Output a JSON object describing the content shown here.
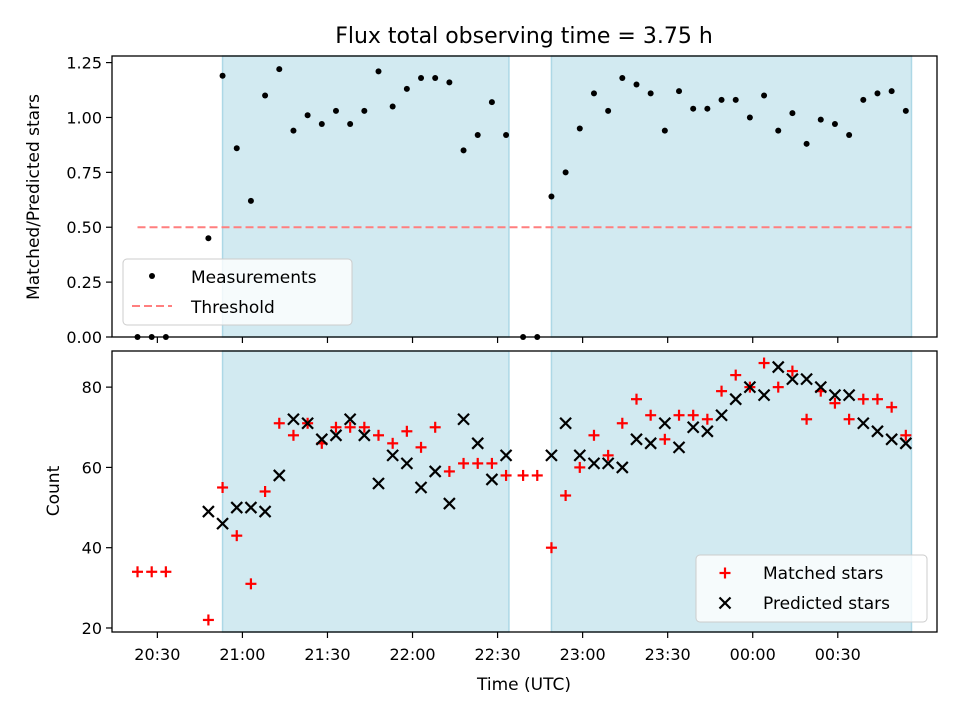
{
  "title": "Flux total observing time = 3.75 h",
  "colors": {
    "band": "#add8e6",
    "measurement": "#000000",
    "threshold": "#ff7f7f",
    "matched": "#ff0000",
    "predicted": "#000000"
  },
  "chart_data": [
    {
      "type": "scatter",
      "ylabel": "Matched/Predicted stars",
      "xlim": [
        20.2333,
        25.0833
      ],
      "ylim": [
        0,
        1.28
      ],
      "yticks": [
        0.0,
        0.25,
        0.5,
        0.75,
        1.0,
        1.25
      ],
      "ytick_labels": [
        "0.00",
        "0.25",
        "0.50",
        "0.75",
        "1.00",
        "1.25"
      ],
      "grid": false,
      "legend_position": "bottom-left",
      "observing_windows": [
        [
          20.8833,
          22.5667
        ],
        [
          22.8167,
          24.9333
        ]
      ],
      "threshold": {
        "name": "Threshold",
        "value": 0.5,
        "x_range": [
          20.3833,
          24.9333
        ]
      },
      "series": [
        {
          "name": "Measurements",
          "points": [
            [
              20.3833,
              0.0
            ],
            [
              20.4667,
              0.0
            ],
            [
              20.55,
              0.0
            ],
            [
              20.8,
              0.45
            ],
            [
              20.8833,
              1.19
            ],
            [
              20.9667,
              0.86
            ],
            [
              21.05,
              0.62
            ],
            [
              21.1333,
              1.1
            ],
            [
              21.2167,
              1.22
            ],
            [
              21.3,
              0.94
            ],
            [
              21.3833,
              1.01
            ],
            [
              21.4667,
              0.97
            ],
            [
              21.55,
              1.03
            ],
            [
              21.6333,
              0.97
            ],
            [
              21.7167,
              1.03
            ],
            [
              21.8,
              1.21
            ],
            [
              21.8833,
              1.05
            ],
            [
              21.9667,
              1.13
            ],
            [
              22.05,
              1.18
            ],
            [
              22.1333,
              1.18
            ],
            [
              22.2167,
              1.16
            ],
            [
              22.3,
              0.85
            ],
            [
              22.3833,
              0.92
            ],
            [
              22.4667,
              1.07
            ],
            [
              22.55,
              0.92
            ],
            [
              22.65,
              0.0
            ],
            [
              22.7333,
              0.0
            ],
            [
              22.8167,
              0.64
            ],
            [
              22.9,
              0.75
            ],
            [
              22.9833,
              0.95
            ],
            [
              23.0667,
              1.11
            ],
            [
              23.15,
              1.03
            ],
            [
              23.2333,
              1.18
            ],
            [
              23.3167,
              1.15
            ],
            [
              23.4,
              1.11
            ],
            [
              23.4833,
              0.94
            ],
            [
              23.5667,
              1.12
            ],
            [
              23.65,
              1.04
            ],
            [
              23.7333,
              1.04
            ],
            [
              23.8167,
              1.08
            ],
            [
              23.9,
              1.08
            ],
            [
              23.9833,
              1.0
            ],
            [
              24.0667,
              1.1
            ],
            [
              24.15,
              0.94
            ],
            [
              24.2333,
              1.02
            ],
            [
              24.3167,
              0.88
            ],
            [
              24.4,
              0.99
            ],
            [
              24.4833,
              0.97
            ],
            [
              24.5667,
              0.92
            ],
            [
              24.65,
              1.08
            ],
            [
              24.7333,
              1.11
            ],
            [
              24.8167,
              1.12
            ],
            [
              24.9,
              1.03
            ]
          ]
        }
      ]
    },
    {
      "type": "scatter",
      "xlabel": "Time (UTC)",
      "ylabel": "Count",
      "xlim": [
        20.2333,
        25.0833
      ],
      "ylim": [
        19,
        89
      ],
      "xticks": [
        20.5,
        21.0,
        21.5,
        22.0,
        22.5,
        23.0,
        23.5,
        24.0,
        24.5
      ],
      "xtick_labels": [
        "20:30",
        "21:00",
        "21:30",
        "22:00",
        "22:30",
        "23:00",
        "23:30",
        "00:00",
        "00:30"
      ],
      "yticks": [
        20,
        40,
        60,
        80
      ],
      "ytick_labels": [
        "20",
        "40",
        "60",
        "80"
      ],
      "grid": false,
      "legend_position": "bottom-right",
      "observing_windows": [
        [
          20.8833,
          22.5667
        ],
        [
          22.8167,
          24.9333
        ]
      ],
      "series": [
        {
          "name": "Matched stars",
          "marker": "+",
          "points": [
            [
              20.3833,
              34
            ],
            [
              20.4667,
              34
            ],
            [
              20.55,
              34
            ],
            [
              20.8,
              22
            ],
            [
              20.8833,
              55
            ],
            [
              20.9667,
              43
            ],
            [
              21.05,
              31
            ],
            [
              21.1333,
              54
            ],
            [
              21.2167,
              71
            ],
            [
              21.3,
              68
            ],
            [
              21.3833,
              71
            ],
            [
              21.4667,
              66
            ],
            [
              21.55,
              70
            ],
            [
              21.6333,
              70
            ],
            [
              21.7167,
              70
            ],
            [
              21.8,
              68
            ],
            [
              21.8833,
              66
            ],
            [
              21.9667,
              69
            ],
            [
              22.05,
              65
            ],
            [
              22.1333,
              70
            ],
            [
              22.2167,
              59
            ],
            [
              22.3,
              61
            ],
            [
              22.3833,
              61
            ],
            [
              22.4667,
              61
            ],
            [
              22.55,
              58
            ],
            [
              22.65,
              58
            ],
            [
              22.7333,
              58
            ],
            [
              22.8167,
              40
            ],
            [
              22.9,
              53
            ],
            [
              22.9833,
              60
            ],
            [
              23.0667,
              68
            ],
            [
              23.15,
              63
            ],
            [
              23.2333,
              71
            ],
            [
              23.3167,
              77
            ],
            [
              23.4,
              73
            ],
            [
              23.4833,
              67
            ],
            [
              23.5667,
              73
            ],
            [
              23.65,
              73
            ],
            [
              23.7333,
              72
            ],
            [
              23.8167,
              79
            ],
            [
              23.9,
              83
            ],
            [
              23.9833,
              80
            ],
            [
              24.0667,
              86
            ],
            [
              24.15,
              80
            ],
            [
              24.2333,
              84
            ],
            [
              24.3167,
              72
            ],
            [
              24.4,
              79
            ],
            [
              24.4833,
              76
            ],
            [
              24.5667,
              72
            ],
            [
              24.65,
              77
            ],
            [
              24.7333,
              77
            ],
            [
              24.8167,
              75
            ],
            [
              24.9,
              68
            ]
          ]
        },
        {
          "name": "Predicted stars",
          "marker": "x",
          "points": [
            [
              20.8,
              49
            ],
            [
              20.8833,
              46
            ],
            [
              20.9667,
              50
            ],
            [
              21.05,
              50
            ],
            [
              21.1333,
              49
            ],
            [
              21.2167,
              58
            ],
            [
              21.3,
              72
            ],
            [
              21.3833,
              71
            ],
            [
              21.4667,
              67
            ],
            [
              21.55,
              68
            ],
            [
              21.6333,
              72
            ],
            [
              21.7167,
              68
            ],
            [
              21.8,
              56
            ],
            [
              21.8833,
              63
            ],
            [
              21.9667,
              61
            ],
            [
              22.05,
              55
            ],
            [
              22.1333,
              59
            ],
            [
              22.2167,
              51
            ],
            [
              22.3,
              72
            ],
            [
              22.3833,
              66
            ],
            [
              22.4667,
              57
            ],
            [
              22.55,
              63
            ],
            [
              22.8167,
              63
            ],
            [
              22.9,
              71
            ],
            [
              22.9833,
              63
            ],
            [
              23.0667,
              61
            ],
            [
              23.15,
              61
            ],
            [
              23.2333,
              60
            ],
            [
              23.3167,
              67
            ],
            [
              23.4,
              66
            ],
            [
              23.4833,
              71
            ],
            [
              23.5667,
              65
            ],
            [
              23.65,
              70
            ],
            [
              23.7333,
              69
            ],
            [
              23.8167,
              73
            ],
            [
              23.9,
              77
            ],
            [
              23.9833,
              80
            ],
            [
              24.0667,
              78
            ],
            [
              24.15,
              85
            ],
            [
              24.2333,
              82
            ],
            [
              24.3167,
              82
            ],
            [
              24.4,
              80
            ],
            [
              24.4833,
              78
            ],
            [
              24.5667,
              78
            ],
            [
              24.65,
              71
            ],
            [
              24.7333,
              69
            ],
            [
              24.8167,
              67
            ],
            [
              24.9,
              66
            ]
          ]
        }
      ]
    }
  ]
}
